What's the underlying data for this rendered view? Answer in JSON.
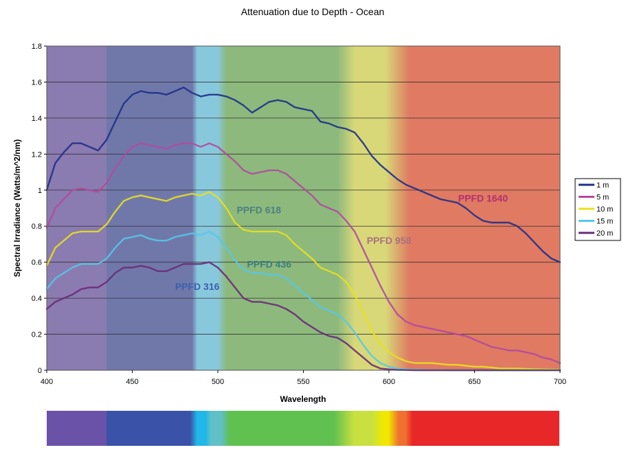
{
  "chart_data": {
    "type": "line",
    "title": "Attenuation due to Depth - Ocean",
    "xlabel": "Wavelength",
    "ylabel": "Spectral Irradiance (Watts/m^2/nm)",
    "xlim": [
      400,
      700
    ],
    "ylim": [
      0,
      1.8
    ],
    "xticks": [
      "400",
      "450",
      "500",
      "550",
      "600",
      "650",
      "700"
    ],
    "yticks": [
      "0",
      "0.2",
      "0.4",
      "0.6",
      "0.8",
      "1",
      "1.2",
      "1.4",
      "1.6",
      "1.8"
    ],
    "grid": true,
    "legend_position": "right",
    "x": [
      400,
      405,
      410,
      415,
      420,
      425,
      430,
      435,
      440,
      445,
      450,
      455,
      460,
      465,
      470,
      475,
      480,
      485,
      490,
      495,
      500,
      505,
      510,
      515,
      520,
      525,
      530,
      535,
      540,
      545,
      550,
      555,
      560,
      565,
      570,
      575,
      580,
      585,
      590,
      595,
      600,
      605,
      610,
      615,
      620,
      625,
      630,
      635,
      640,
      645,
      650,
      655,
      660,
      665,
      670,
      675,
      680,
      685,
      690,
      695,
      700
    ],
    "series": [
      {
        "name": "1 m",
        "color": "#1f2f8a",
        "values": [
          1.0,
          1.15,
          1.21,
          1.26,
          1.26,
          1.24,
          1.22,
          1.28,
          1.38,
          1.48,
          1.53,
          1.55,
          1.54,
          1.54,
          1.53,
          1.55,
          1.57,
          1.54,
          1.52,
          1.53,
          1.53,
          1.52,
          1.5,
          1.47,
          1.43,
          1.46,
          1.49,
          1.5,
          1.49,
          1.46,
          1.45,
          1.44,
          1.38,
          1.37,
          1.35,
          1.34,
          1.32,
          1.26,
          1.19,
          1.14,
          1.1,
          1.06,
          1.03,
          1.01,
          0.99,
          0.97,
          0.95,
          0.94,
          0.93,
          0.9,
          0.86,
          0.83,
          0.82,
          0.82,
          0.82,
          0.8,
          0.76,
          0.71,
          0.66,
          0.62,
          0.6
        ]
      },
      {
        "name": "5 m",
        "color": "#b04aa0",
        "values": [
          0.79,
          0.9,
          0.95,
          1.0,
          1.01,
          1.0,
          0.99,
          1.04,
          1.12,
          1.19,
          1.24,
          1.26,
          1.25,
          1.24,
          1.23,
          1.25,
          1.26,
          1.26,
          1.24,
          1.26,
          1.24,
          1.2,
          1.16,
          1.11,
          1.09,
          1.1,
          1.11,
          1.11,
          1.09,
          1.05,
          1.01,
          0.97,
          0.92,
          0.9,
          0.88,
          0.83,
          0.77,
          0.67,
          0.57,
          0.47,
          0.38,
          0.31,
          0.27,
          0.25,
          0.24,
          0.23,
          0.22,
          0.21,
          0.2,
          0.19,
          0.17,
          0.15,
          0.13,
          0.12,
          0.11,
          0.11,
          0.1,
          0.09,
          0.07,
          0.06,
          0.04
        ]
      },
      {
        "name": "10 m",
        "color": "#e8e020",
        "values": [
          0.58,
          0.68,
          0.72,
          0.76,
          0.77,
          0.77,
          0.77,
          0.81,
          0.88,
          0.94,
          0.96,
          0.97,
          0.96,
          0.95,
          0.94,
          0.96,
          0.97,
          0.98,
          0.97,
          0.99,
          0.96,
          0.9,
          0.82,
          0.78,
          0.77,
          0.77,
          0.77,
          0.77,
          0.75,
          0.7,
          0.66,
          0.62,
          0.57,
          0.55,
          0.53,
          0.49,
          0.42,
          0.32,
          0.22,
          0.15,
          0.1,
          0.07,
          0.05,
          0.04,
          0.04,
          0.04,
          0.035,
          0.03,
          0.03,
          0.025,
          0.02,
          0.02,
          0.015,
          0.01,
          0.01,
          0.01,
          0.008,
          0.006,
          0.005,
          0.004,
          0.003
        ]
      },
      {
        "name": "15 m",
        "color": "#55c8e8",
        "values": [
          0.45,
          0.51,
          0.54,
          0.57,
          0.59,
          0.59,
          0.59,
          0.62,
          0.68,
          0.73,
          0.74,
          0.75,
          0.73,
          0.72,
          0.72,
          0.74,
          0.75,
          0.76,
          0.75,
          0.77,
          0.74,
          0.68,
          0.61,
          0.56,
          0.54,
          0.54,
          0.53,
          0.53,
          0.51,
          0.47,
          0.43,
          0.39,
          0.35,
          0.33,
          0.31,
          0.27,
          0.21,
          0.14,
          0.08,
          0.04,
          0.02,
          0.01,
          0.005,
          0.003,
          0.002,
          0.001,
          0.001,
          0,
          0,
          0,
          0,
          0,
          0,
          0,
          0,
          0,
          0,
          0,
          0,
          0,
          0
        ]
      },
      {
        "name": "20 m",
        "color": "#6a2a78",
        "values": [
          0.34,
          0.38,
          0.4,
          0.42,
          0.45,
          0.46,
          0.46,
          0.49,
          0.54,
          0.57,
          0.57,
          0.58,
          0.57,
          0.55,
          0.55,
          0.57,
          0.59,
          0.59,
          0.59,
          0.6,
          0.57,
          0.52,
          0.46,
          0.4,
          0.38,
          0.38,
          0.37,
          0.36,
          0.34,
          0.31,
          0.27,
          0.24,
          0.21,
          0.19,
          0.18,
          0.15,
          0.11,
          0.07,
          0.03,
          0.01,
          0.005,
          0.002,
          0.001,
          0,
          0,
          0,
          0,
          0,
          0,
          0,
          0,
          0,
          0,
          0,
          0,
          0,
          0,
          0,
          0,
          0,
          0
        ]
      }
    ],
    "annotations": [
      {
        "text": "PPFD  1640",
        "x": 655,
        "y": 0.955,
        "color": "#b03070"
      },
      {
        "text": "PPFD 958",
        "x": 600,
        "y": 0.72,
        "color": "#a87080"
      },
      {
        "text": "PPFD 618",
        "x": 524,
        "y": 0.89,
        "color": "#4a8080"
      },
      {
        "text": "PPFD 436",
        "x": 530,
        "y": 0.59,
        "color": "#3a8080"
      },
      {
        "text": "PPFD 316",
        "x": 488,
        "y": 0.465,
        "color": "#3a60b0"
      }
    ],
    "spectrum_bands": [
      {
        "color": "#8a7bb0",
        "from": 400,
        "to": 435
      },
      {
        "color": "#7078aa",
        "from": 435,
        "to": 485
      },
      {
        "color": "#88c8dc",
        "from": 488,
        "to": 500
      },
      {
        "color": "#8db97c",
        "from": 505,
        "to": 570
      },
      {
        "color": "#d8d878",
        "from": 580,
        "to": 598
      },
      {
        "color": "#e07a62",
        "from": 612,
        "to": 700
      }
    ],
    "spectrum_bar": [
      {
        "color": "#6a52a8",
        "from": 400,
        "to": 435
      },
      {
        "color": "#3a52a8",
        "from": 435,
        "to": 484
      },
      {
        "color": "#20b8e8",
        "from": 488,
        "to": 493
      },
      {
        "color": "#60c0c8",
        "from": 496,
        "to": 502
      },
      {
        "color": "#60c050",
        "from": 507,
        "to": 568
      },
      {
        "color": "#c8e040",
        "from": 580,
        "to": 590
      },
      {
        "color": "#f0e800",
        "from": 597,
        "to": 600
      },
      {
        "color": "#f07030",
        "from": 606,
        "to": 610
      },
      {
        "color": "#e82828",
        "from": 614,
        "to": 700
      }
    ]
  }
}
